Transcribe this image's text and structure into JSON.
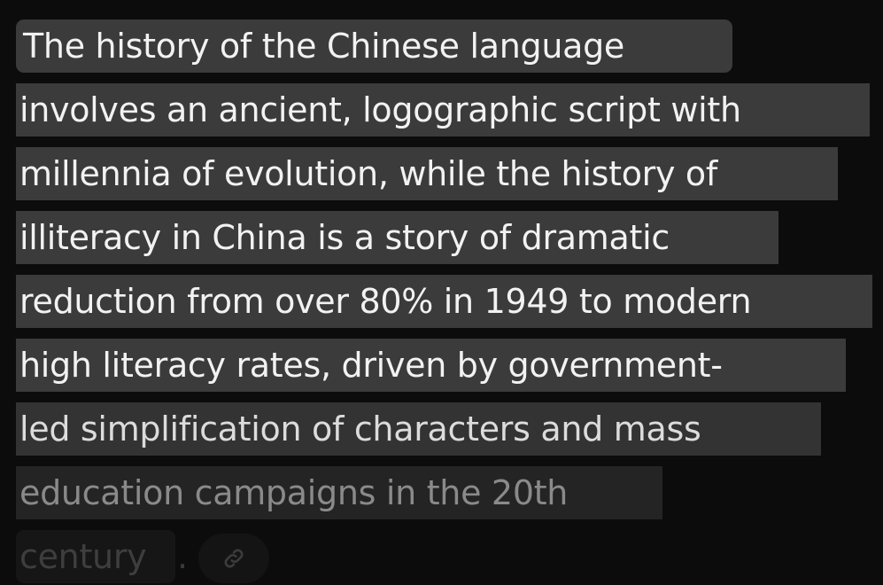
{
  "response": {
    "lines": [
      "The history of the Chinese language",
      "involves an ancient, logographic script with",
      "millennia of evolution, while the history of",
      "illiteracy in China is a story of dramatic",
      "reduction from over 80% in 1949 to modern",
      "high literacy rates, driven by government-",
      "led simplification of characters and mass",
      "education campaigns in the 20th",
      "century"
    ],
    "end_punctuation": ".",
    "link_icon": "link-icon"
  },
  "colors": {
    "background": "#0c0c0c",
    "highlight": "#3b3b3b",
    "text": "#f2f2f2"
  }
}
